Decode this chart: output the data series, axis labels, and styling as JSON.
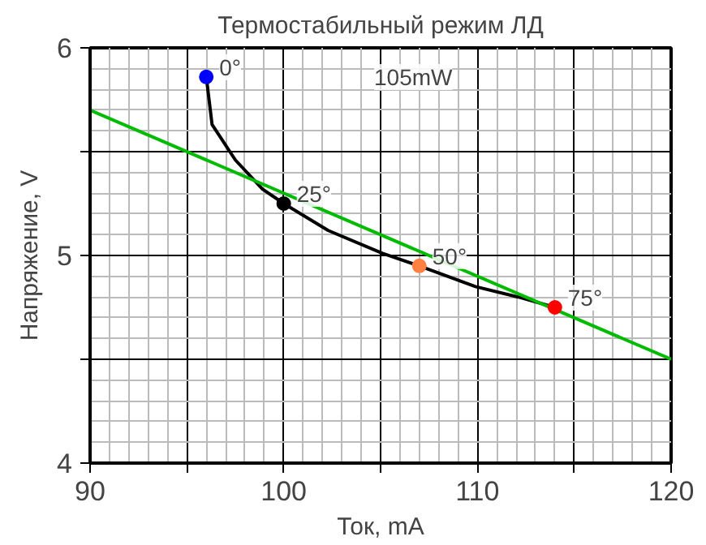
{
  "chart_data": {
    "type": "line",
    "title": "Термостабильный режим ЛД",
    "xlabel": "Ток, mA",
    "ylabel": "Напряжение, V",
    "xlim": [
      90,
      120
    ],
    "ylim": [
      4,
      6
    ],
    "xticks": [
      90,
      {
        "value": 95,
        "label": null
      },
      100,
      {
        "value": 105,
        "label": null
      },
      110,
      {
        "value": 115,
        "label": null
      },
      120
    ],
    "yticks": [
      4,
      {
        "value": 4.5,
        "label": null
      },
      5,
      {
        "value": 5.5,
        "label": null
      },
      6
    ],
    "grid": true,
    "series": [
      {
        "color": "#000000",
        "x": [
          96,
          96.3,
          97.5,
          98.9,
          100,
          102.3,
          105.1,
          107,
          109.9,
          112.1,
          114
        ],
        "values": [
          5.86,
          5.63,
          5.46,
          5.32,
          5.25,
          5.12,
          5.01,
          4.95,
          4.85,
          4.8,
          4.75
        ]
      },
      {
        "color": "#00bb00",
        "x": [
          90,
          120
        ],
        "values": [
          5.7,
          4.5
        ]
      },
      {
        "type": "scatter",
        "marker": "circle",
        "colors": [
          "#0000ff",
          "#000000",
          "#ff8040",
          "#ff0000"
        ],
        "x": [
          96,
          100,
          107,
          114
        ],
        "values": [
          5.86,
          5.25,
          4.95,
          4.75
        ]
      }
    ],
    "annotations": [
      {
        "text": "0°",
        "x": 96,
        "y": 5.86
      },
      {
        "text": "25°",
        "x": 100,
        "y": 5.25
      },
      {
        "text": "50°",
        "x": 107,
        "y": 4.95
      },
      {
        "text": "75°",
        "x": 114,
        "y": 4.75
      },
      "105mW"
    ]
  }
}
